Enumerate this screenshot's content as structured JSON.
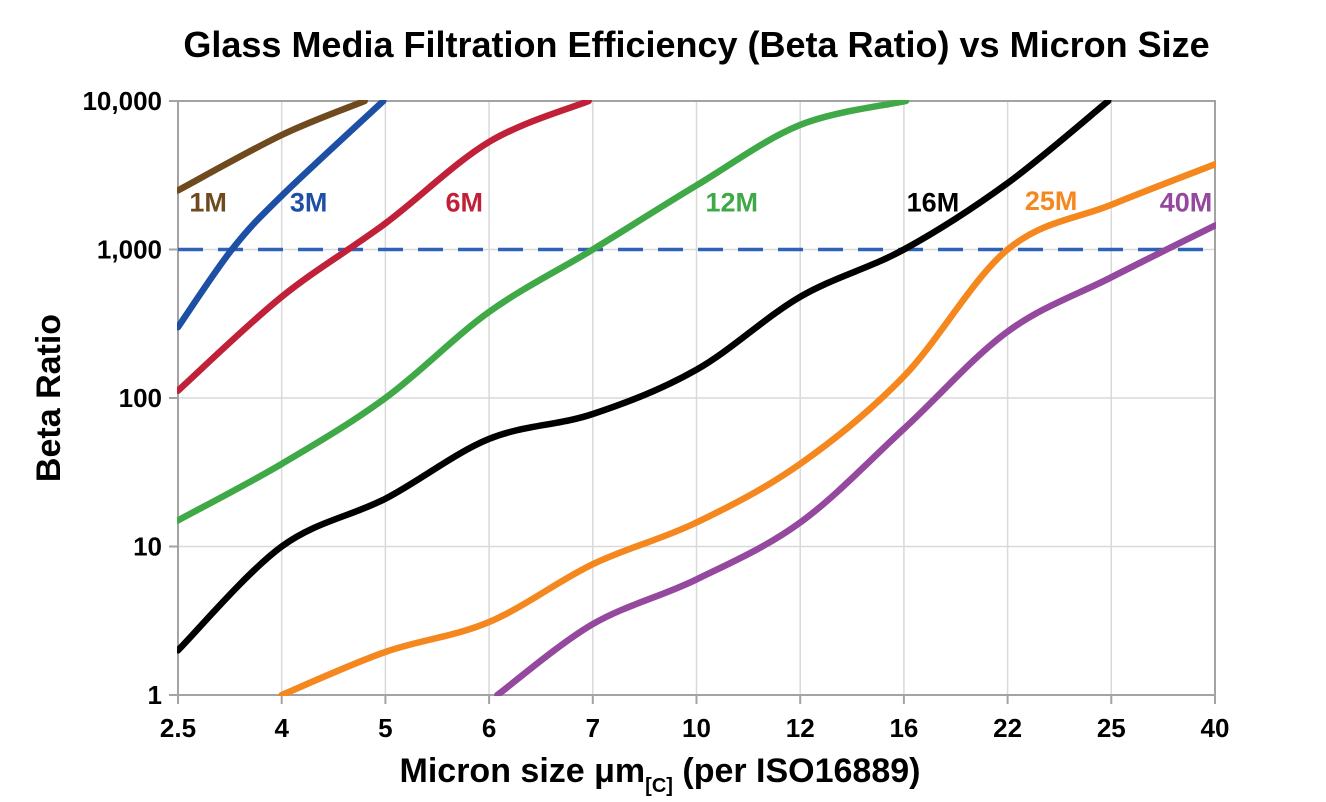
{
  "title": "Glass Media Filtration Efficiency (Beta Ratio) vs Micron Size",
  "chart_data": {
    "type": "line",
    "title": "Glass Media Filtration Efficiency (Beta Ratio) vs Micron Size",
    "ylabel": "Beta Ratio",
    "xlabel": {
      "main": "Micron size μm",
      "sub": "[C]",
      "tail": " (per ISO16889)"
    },
    "x_categories": [
      "2.5",
      "4",
      "5",
      "6",
      "7",
      "10",
      "12",
      "16",
      "22",
      "25",
      "40"
    ],
    "y_ticks": [
      "1",
      "10",
      "100",
      "1,000",
      "10,000"
    ],
    "y_scale": "log",
    "y_range": [
      1,
      10000
    ],
    "grid": true,
    "legend_position": "inline-labels",
    "reference_line": {
      "value": 1000,
      "style": "dashed",
      "color": "#2E62B8"
    },
    "colors": {
      "grid": "#D9D9D9",
      "border": "#A3A3A3",
      "text": "#000000"
    },
    "series": [
      {
        "name": "1M",
        "color": "#6F4A1E",
        "label_pos": [
          0.29,
          2100
        ],
        "points": [
          [
            0,
            2500
          ],
          [
            1,
            5900
          ],
          [
            1.8,
            10000
          ]
        ]
      },
      {
        "name": "3M",
        "color": "#1D4FA5",
        "label_pos": [
          1.26,
          2100
        ],
        "points": [
          [
            0,
            300
          ],
          [
            0.52,
            1000
          ],
          [
            1,
            2300
          ],
          [
            1.98,
            10000
          ]
        ]
      },
      {
        "name": "6M",
        "color": "#C02138",
        "label_pos": [
          2.76,
          2100
        ],
        "points": [
          [
            0,
            112
          ],
          [
            1,
            480
          ],
          [
            2,
            1500
          ],
          [
            3,
            5300
          ],
          [
            3.96,
            10000
          ]
        ]
      },
      {
        "name": "12M",
        "color": "#3FA847",
        "label_pos": [
          5.34,
          2100
        ],
        "points": [
          [
            0,
            15
          ],
          [
            1,
            36
          ],
          [
            2,
            100
          ],
          [
            3,
            380
          ],
          [
            4,
            1000
          ],
          [
            5,
            2700
          ],
          [
            6,
            6900
          ],
          [
            7.02,
            10000
          ]
        ]
      },
      {
        "name": "16M",
        "color": "#000000",
        "label_pos": [
          7.28,
          2100
        ],
        "points": [
          [
            0,
            2
          ],
          [
            1,
            10
          ],
          [
            2,
            21
          ],
          [
            3,
            53
          ],
          [
            4,
            78
          ],
          [
            5,
            155
          ],
          [
            6,
            480
          ],
          [
            7,
            1000
          ],
          [
            8,
            2800
          ],
          [
            8.97,
            10000
          ]
        ]
      },
      {
        "name": "25M",
        "color": "#F5871F",
        "label_pos": [
          8.42,
          2150
        ],
        "points": [
          [
            1,
            1
          ],
          [
            2,
            1.95
          ],
          [
            3,
            3.1
          ],
          [
            4,
            7.6
          ],
          [
            5,
            14.5
          ],
          [
            6,
            36
          ],
          [
            7,
            140
          ],
          [
            8,
            1000
          ],
          [
            9,
            2000
          ],
          [
            10,
            3750
          ]
        ]
      },
      {
        "name": "40M",
        "color": "#94489E",
        "label_pos": [
          9.72,
          2100
        ],
        "points": [
          [
            3.08,
            1
          ],
          [
            4,
            3
          ],
          [
            5,
            6
          ],
          [
            6,
            14.5
          ],
          [
            7,
            62
          ],
          [
            8,
            280
          ],
          [
            9,
            650
          ],
          [
            10,
            1450
          ]
        ]
      }
    ]
  }
}
